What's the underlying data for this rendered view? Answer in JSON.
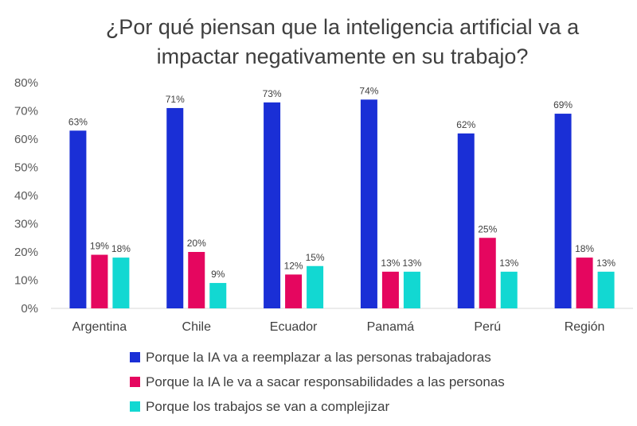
{
  "title_lines": [
    "¿Por qué piensan que la inteligencia artificial va a",
    "impactar negativamente en su trabajo?"
  ],
  "chart_data": {
    "type": "bar",
    "title": "¿Por qué piensan que la inteligencia artificial va a impactar negativamente en su trabajo?",
    "categories": [
      "Argentina",
      "Chile",
      "Ecuador",
      "Panamá",
      "Perú",
      "Región"
    ],
    "series": [
      {
        "name": "Porque la IA va a reemplazar a las personas trabajadoras",
        "color": "#1a2fd6",
        "values": [
          63,
          71,
          73,
          74,
          62,
          69
        ],
        "labels": [
          "63%",
          "71%",
          "73%",
          "74%",
          "62%",
          "69%"
        ]
      },
      {
        "name": "Porque la IA le va a sacar responsabilidades a las personas",
        "color": "#e5065f",
        "values": [
          19,
          20,
          12,
          13,
          25,
          18
        ],
        "labels": [
          "19%",
          "20%",
          "12%",
          "13%",
          "25%",
          "18%"
        ]
      },
      {
        "name": "Porque los trabajos se van a complejizar",
        "color": "#12d8d2",
        "values": [
          18,
          9,
          15,
          13,
          13,
          13
        ],
        "labels": [
          "18%",
          "9%",
          "15%",
          "13%",
          "13%",
          "13%"
        ]
      }
    ],
    "ylim": [
      0,
      80
    ],
    "yticks": [
      0,
      10,
      20,
      30,
      40,
      50,
      60,
      70,
      80
    ],
    "ytick_labels": [
      "0%",
      "10%",
      "20%",
      "30%",
      "40%",
      "50%",
      "60%",
      "70%",
      "80%"
    ],
    "xlabel": "",
    "ylabel": "",
    "legend_position": "bottom"
  }
}
